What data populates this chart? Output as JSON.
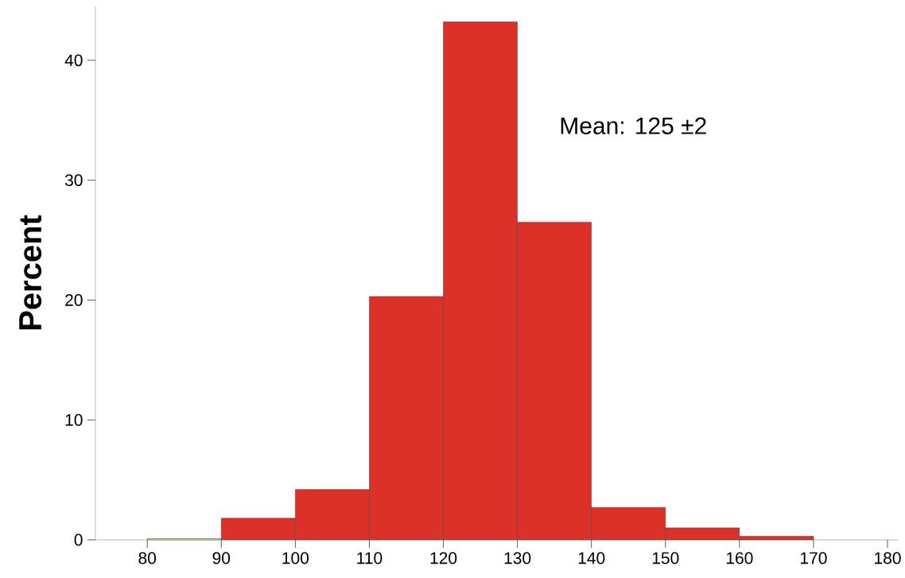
{
  "chart_data": {
    "type": "histogram",
    "ylabel": "Percent",
    "bins": [
      80,
      90,
      100,
      110,
      120,
      130,
      140,
      150,
      160,
      170
    ],
    "values": [
      0.1,
      1.8,
      4.2,
      20.3,
      43.2,
      26.5,
      2.7,
      1.0,
      0.3
    ],
    "colors": [
      "#e8e2a8",
      "#dc3128",
      "#dc3128",
      "#dc3128",
      "#dc3128",
      "#dc3128",
      "#dc3128",
      "#dc3128",
      "#dc3128"
    ],
    "xlim": [
      73,
      181.5
    ],
    "ylim": [
      0,
      44.5
    ],
    "xticks": [
      80,
      90,
      100,
      110,
      120,
      130,
      140,
      150,
      160,
      170,
      180
    ],
    "yticks": [
      0,
      10,
      20,
      30,
      40
    ],
    "grid": false,
    "annotations": [
      "Mean: 125 ±2"
    ]
  }
}
